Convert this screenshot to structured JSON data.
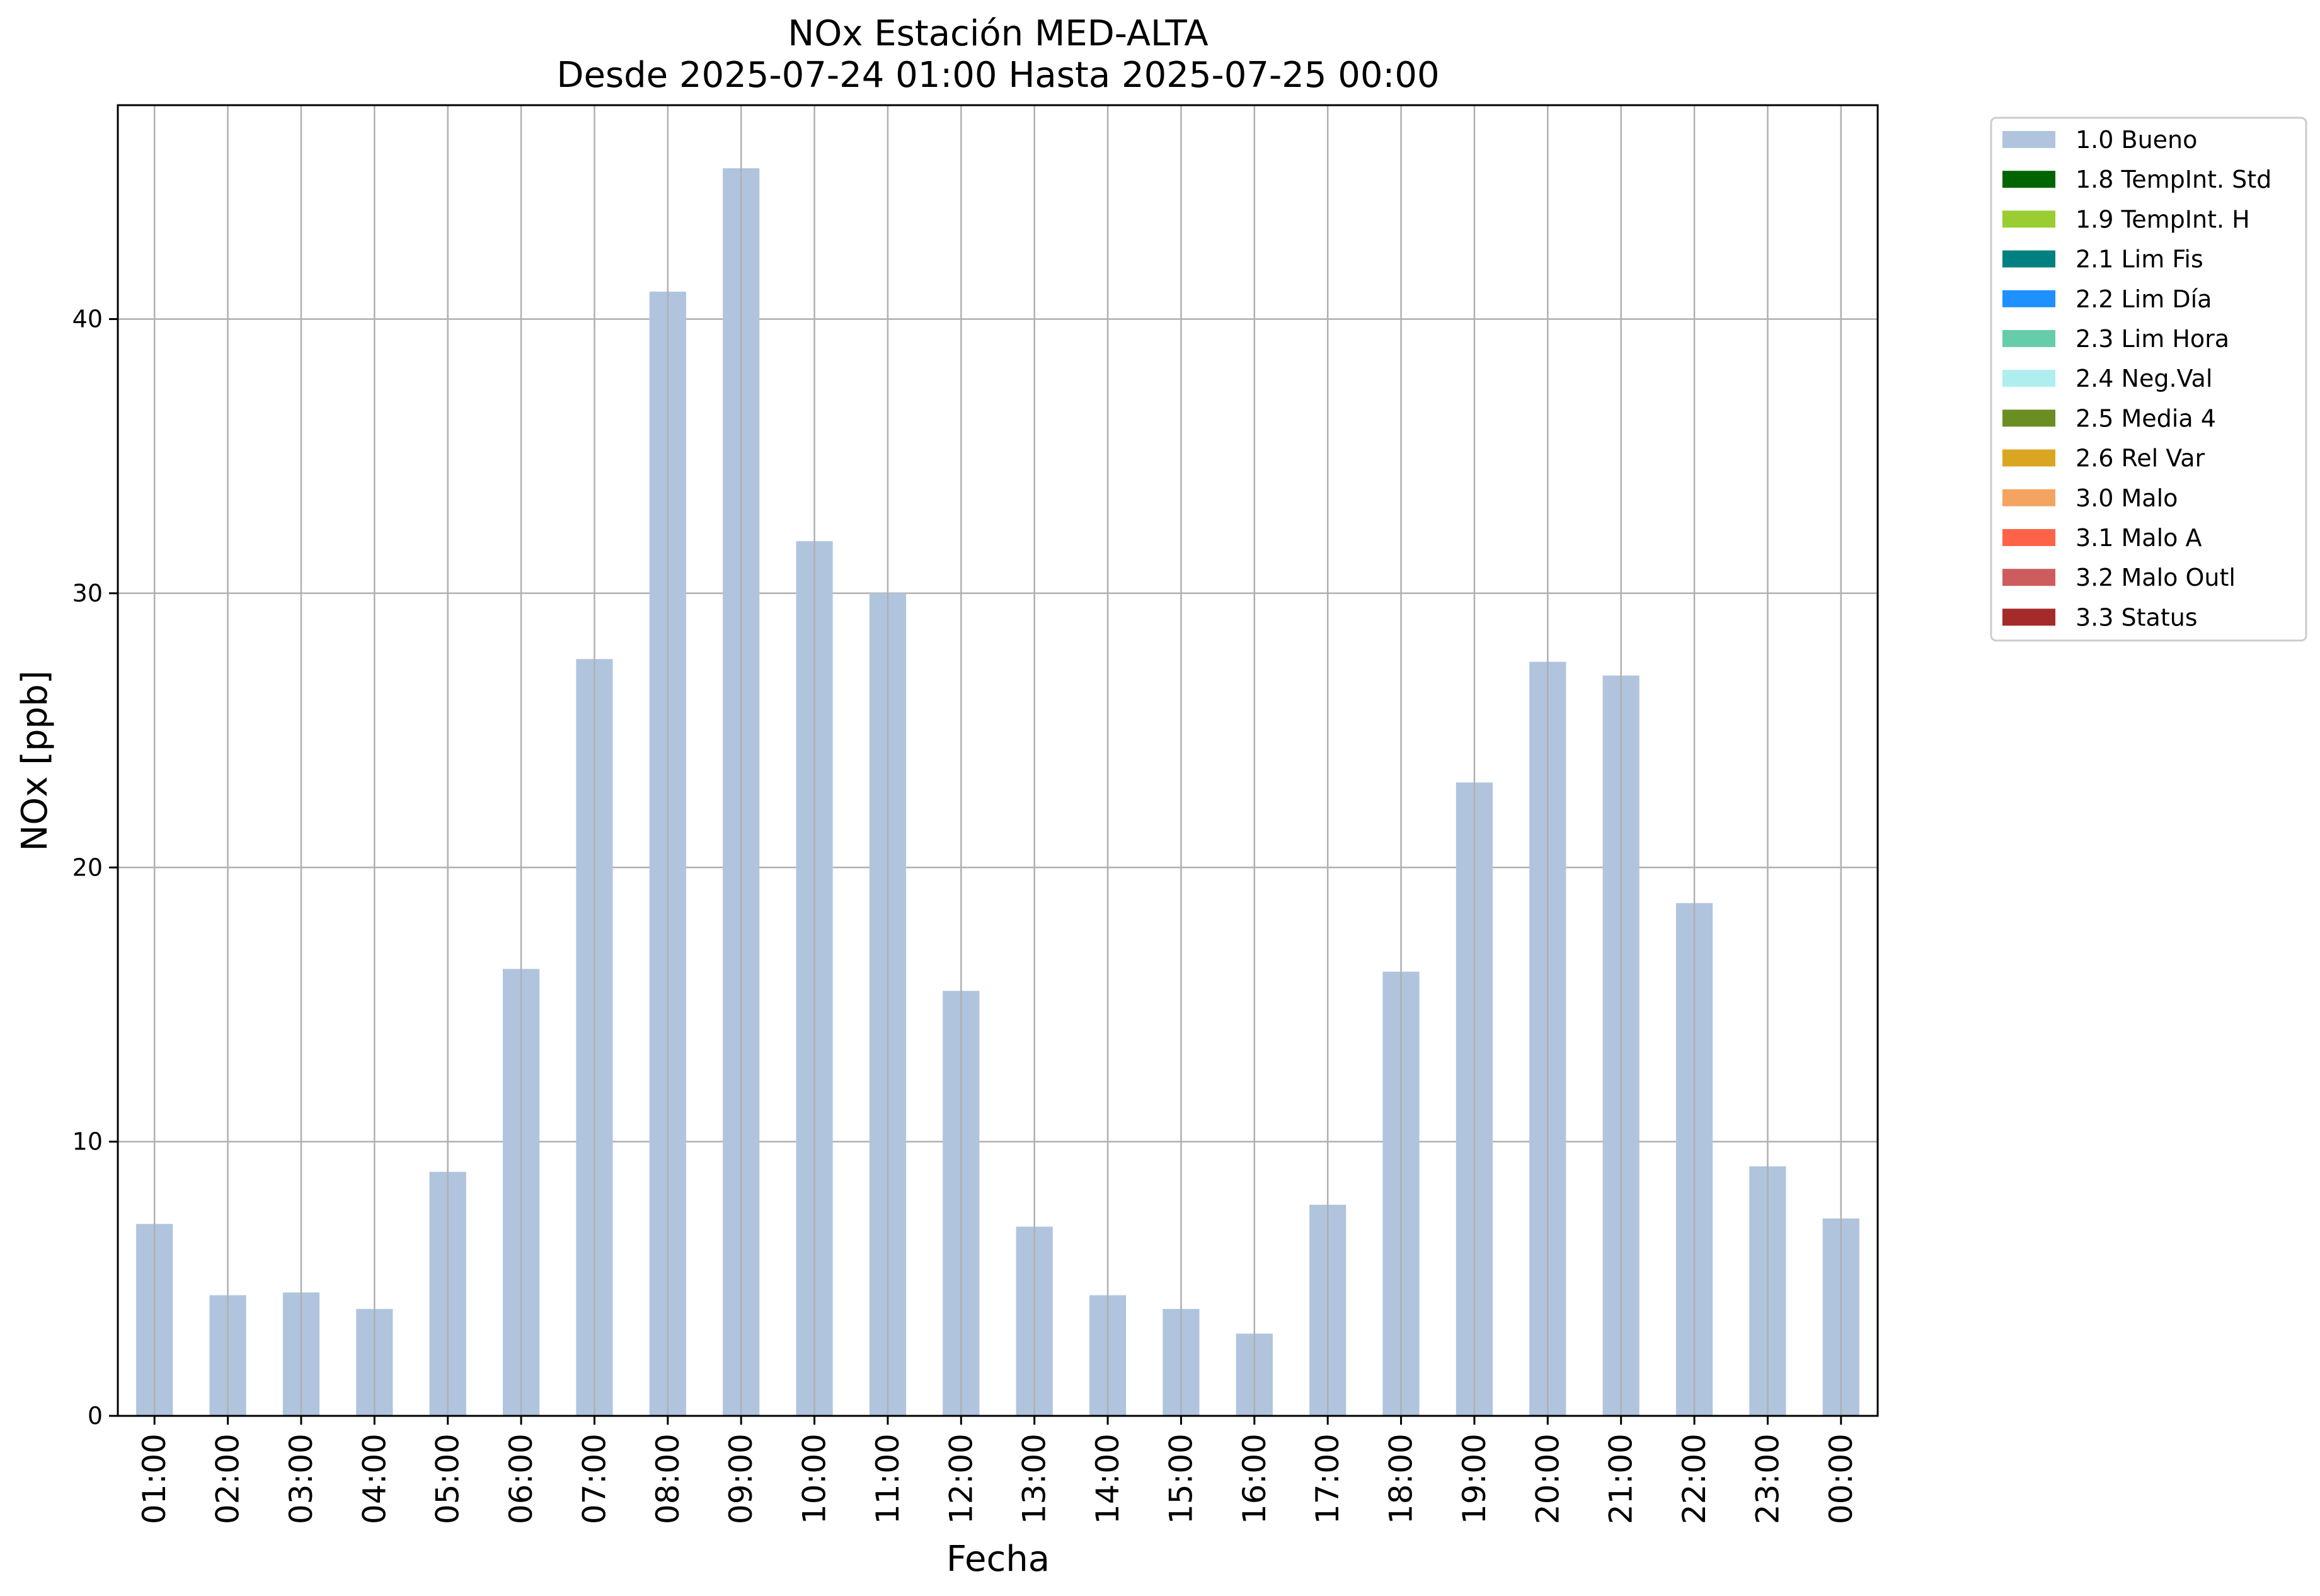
{
  "chart_data": {
    "type": "bar",
    "title": "NOx Estación MED-ALTA",
    "subtitle": "Desde 2025-07-24 01:00 Hasta 2025-07-25 00:00",
    "xlabel": "Fecha",
    "ylabel": "NOx [ppb]",
    "ylim": [
      0,
      47.8
    ],
    "yticks": [
      0,
      10,
      20,
      30,
      40
    ],
    "grid": true,
    "legend_position": "outside-top-right",
    "categories": [
      "01:00",
      "02:00",
      "03:00",
      "04:00",
      "05:00",
      "06:00",
      "07:00",
      "08:00",
      "09:00",
      "10:00",
      "11:00",
      "12:00",
      "13:00",
      "14:00",
      "15:00",
      "16:00",
      "17:00",
      "18:00",
      "19:00",
      "20:00",
      "21:00",
      "22:00",
      "23:00",
      "00:00"
    ],
    "series": [
      {
        "name": "1.0 Bueno",
        "color": "#b0c4de",
        "values": [
          7.0,
          4.4,
          4.5,
          3.9,
          8.9,
          16.3,
          27.6,
          41.0,
          45.5,
          31.9,
          30.0,
          15.5,
          6.9,
          4.4,
          3.9,
          3.0,
          7.7,
          16.2,
          23.1,
          27.5,
          27.0,
          18.7,
          9.1,
          7.2
        ]
      }
    ],
    "legend": [
      {
        "label": "1.0 Bueno",
        "color": "#b0c4de"
      },
      {
        "label": "1.8 TempInt. Std",
        "color": "#006400"
      },
      {
        "label": "1.9 TempInt. H",
        "color": "#9acd32"
      },
      {
        "label": "2.1 Lim Fis",
        "color": "#008080"
      },
      {
        "label": "2.2 Lim Día",
        "color": "#1e90ff"
      },
      {
        "label": "2.3 Lim Hora",
        "color": "#66cdaa"
      },
      {
        "label": "2.4 Neg.Val",
        "color": "#afeeee"
      },
      {
        "label": "2.5 Media 4",
        "color": "#6b8e23"
      },
      {
        "label": "2.6 Rel Var",
        "color": "#daa520"
      },
      {
        "label": "3.0 Malo",
        "color": "#f4a460"
      },
      {
        "label": "3.1 Malo A",
        "color": "#ff6347"
      },
      {
        "label": "3.2 Malo Outl",
        "color": "#cd5c5c"
      },
      {
        "label": "3.3 Status",
        "color": "#a52a2a"
      }
    ]
  }
}
